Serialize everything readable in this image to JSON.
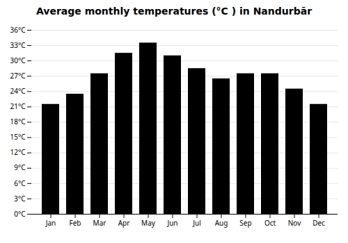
{
  "chart_data": {
    "type": "bar",
    "title": "Average monthly temperatures (°C ) in Nandurbār",
    "categories": [
      "Jan",
      "Feb",
      "Mar",
      "Apr",
      "May",
      "Jun",
      "Jul",
      "Aug",
      "Sep",
      "Oct",
      "Nov",
      "Dec"
    ],
    "values": [
      21.5,
      23.5,
      27.5,
      31.5,
      33.5,
      31.0,
      28.5,
      26.5,
      27.5,
      27.5,
      24.5,
      21.5
    ],
    "ylim": [
      0,
      36
    ],
    "yticks": [
      {
        "value": 0,
        "label": "0°C"
      },
      {
        "value": 3,
        "label": "3°C"
      },
      {
        "value": 6,
        "label": "6°C"
      },
      {
        "value": 9,
        "label": "9°C"
      },
      {
        "value": 12,
        "label": "12°C"
      },
      {
        "value": 15,
        "label": "15°C"
      },
      {
        "value": 18,
        "label": "18°C"
      },
      {
        "value": 21,
        "label": "21°C"
      },
      {
        "value": 24,
        "label": "24°C"
      },
      {
        "value": 27,
        "label": "27°C"
      },
      {
        "value": 30,
        "label": "30°C"
      },
      {
        "value": 33,
        "label": "33°C"
      },
      {
        "value": 36,
        "label": "36°C"
      }
    ],
    "grid": true
  }
}
